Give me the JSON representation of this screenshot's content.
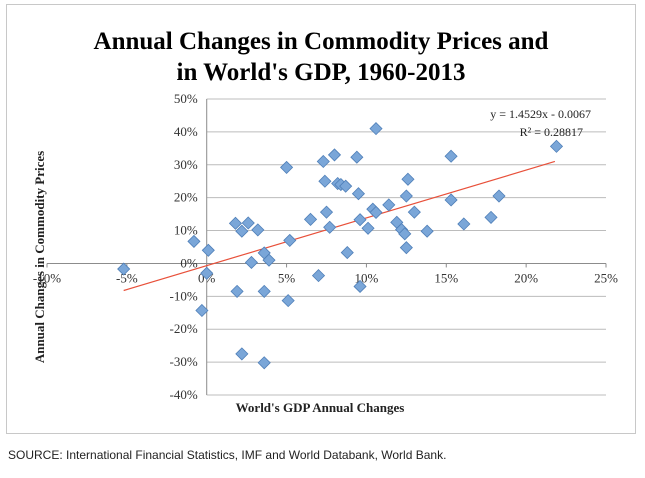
{
  "chart_data": {
    "type": "scatter",
    "title_lines": [
      "Annual Changes in Commodity Prices and",
      "in World's GDP, 1960-2013"
    ],
    "xlabel": "World's GDP Annual Changes",
    "ylabel": "Annual Changes in Commodity Prices",
    "x_ticks": [
      "-10%",
      "-5%",
      "0%",
      "5%",
      "10%",
      "15%",
      "20%",
      "25%"
    ],
    "y_ticks": [
      "50%",
      "40%",
      "30%",
      "20%",
      "10%",
      "0%",
      "-10%",
      "-20%",
      "-30%",
      "-40%"
    ],
    "xlim": [
      -0.1,
      0.25
    ],
    "ylim": [
      -0.4,
      0.5
    ],
    "gridlines": "horizontal",
    "trendline": {
      "slope": 1.4529,
      "intercept": -0.0067,
      "x_range": [
        -0.052,
        0.218
      ],
      "color": "#e8503a",
      "equation_text": "y = 1.4529x - 0.0067",
      "r2_text": "R² = 0.28817"
    },
    "marker_color": "#7aa6d8",
    "points": [
      {
        "x": -0.052,
        "y": -0.017
      },
      {
        "x": -0.008,
        "y": 0.067
      },
      {
        "x": -0.003,
        "y": -0.143
      },
      {
        "x": 0.0,
        "y": -0.03
      },
      {
        "x": 0.001,
        "y": 0.04
      },
      {
        "x": 0.018,
        "y": 0.122
      },
      {
        "x": 0.019,
        "y": -0.085
      },
      {
        "x": 0.022,
        "y": 0.098
      },
      {
        "x": 0.022,
        "y": -0.275
      },
      {
        "x": 0.026,
        "y": 0.123
      },
      {
        "x": 0.028,
        "y": 0.003
      },
      {
        "x": 0.032,
        "y": 0.102
      },
      {
        "x": 0.036,
        "y": 0.032
      },
      {
        "x": 0.036,
        "y": -0.085
      },
      {
        "x": 0.036,
        "y": -0.302
      },
      {
        "x": 0.039,
        "y": 0.01
      },
      {
        "x": 0.05,
        "y": 0.292
      },
      {
        "x": 0.051,
        "y": -0.113
      },
      {
        "x": 0.052,
        "y": 0.07
      },
      {
        "x": 0.065,
        "y": 0.134
      },
      {
        "x": 0.07,
        "y": -0.037
      },
      {
        "x": 0.073,
        "y": 0.31
      },
      {
        "x": 0.074,
        "y": 0.25
      },
      {
        "x": 0.075,
        "y": 0.156
      },
      {
        "x": 0.077,
        "y": 0.11
      },
      {
        "x": 0.08,
        "y": 0.33
      },
      {
        "x": 0.082,
        "y": 0.243
      },
      {
        "x": 0.084,
        "y": 0.24
      },
      {
        "x": 0.087,
        "y": 0.235
      },
      {
        "x": 0.088,
        "y": 0.033
      },
      {
        "x": 0.094,
        "y": 0.323
      },
      {
        "x": 0.095,
        "y": 0.212
      },
      {
        "x": 0.096,
        "y": 0.133
      },
      {
        "x": 0.096,
        "y": -0.07
      },
      {
        "x": 0.101,
        "y": 0.107
      },
      {
        "x": 0.104,
        "y": 0.165
      },
      {
        "x": 0.106,
        "y": 0.41
      },
      {
        "x": 0.106,
        "y": 0.155
      },
      {
        "x": 0.114,
        "y": 0.178
      },
      {
        "x": 0.119,
        "y": 0.125
      },
      {
        "x": 0.122,
        "y": 0.103
      },
      {
        "x": 0.124,
        "y": 0.09
      },
      {
        "x": 0.125,
        "y": 0.048
      },
      {
        "x": 0.125,
        "y": 0.205
      },
      {
        "x": 0.126,
        "y": 0.256
      },
      {
        "x": 0.13,
        "y": 0.156
      },
      {
        "x": 0.138,
        "y": 0.098
      },
      {
        "x": 0.153,
        "y": 0.326
      },
      {
        "x": 0.153,
        "y": 0.193
      },
      {
        "x": 0.161,
        "y": 0.12
      },
      {
        "x": 0.178,
        "y": 0.14
      },
      {
        "x": 0.183,
        "y": 0.205
      },
      {
        "x": 0.219,
        "y": 0.356
      }
    ]
  },
  "source_text": "SOURCE: International Financial Statistics, IMF and World Databank, World Bank."
}
